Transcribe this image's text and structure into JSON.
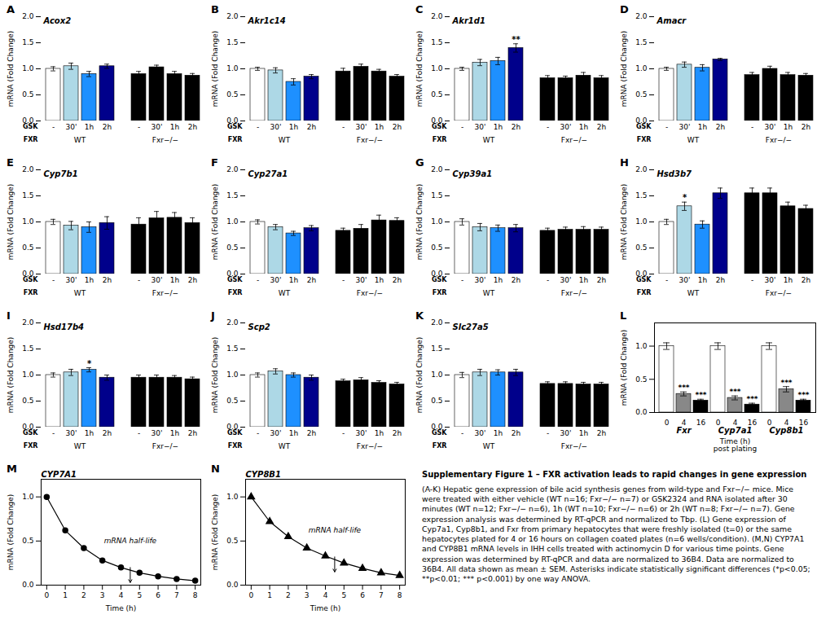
{
  "chart_data": [
    {
      "type": "bar",
      "panel_label": "A",
      "title": "Acox2",
      "categories": [
        "-",
        "30'",
        "1h",
        "2h",
        "-",
        "30'",
        "1h",
        "2h"
      ],
      "category_label": "GSK",
      "groups": [
        "WT",
        "WT",
        "WT",
        "WT",
        "Fxr−/−",
        "Fxr−/−",
        "Fxr−/−",
        "Fxr−/−"
      ],
      "group_label": "FXR",
      "values": [
        1.0,
        1.05,
        0.9,
        1.05,
        0.9,
        1.03,
        0.9,
        0.87
      ],
      "errors": [
        0.04,
        0.06,
        0.05,
        0.04,
        0.05,
        0.04,
        0.05,
        0.04
      ],
      "stars": [
        null,
        null,
        null,
        null,
        null,
        null,
        null,
        null
      ],
      "colors": [
        "white",
        "#add8e6",
        "#1e90ff",
        "#00008b",
        "black",
        "black",
        "black",
        "black"
      ],
      "ylabel": "mRNA (Fold Change)",
      "ylim": [
        0.0,
        2.0
      ],
      "yticks": [
        {
          "value": 0.0,
          "label": "0.0"
        },
        0.5,
        {
          "value": 1.0,
          "label": "1.0"
        },
        1.5,
        {
          "value": 2.0,
          "label": "2.0"
        }
      ]
    },
    {
      "type": "bar",
      "panel_label": "B",
      "title": "Akr1c14",
      "categories": [
        "-",
        "30'",
        "1h",
        "2h",
        "-",
        "30'",
        "1h",
        "2h"
      ],
      "category_label": "GSK",
      "groups": [
        "WT",
        "WT",
        "WT",
        "WT",
        "Fxr−/−",
        "Fxr−/−",
        "Fxr−/−",
        "Fxr−/−"
      ],
      "group_label": "FXR",
      "values": [
        1.0,
        0.97,
        0.75,
        0.85,
        0.95,
        1.04,
        0.95,
        0.85
      ],
      "errors": [
        0.03,
        0.05,
        0.06,
        0.04,
        0.06,
        0.05,
        0.04,
        0.04
      ],
      "stars": [
        null,
        null,
        null,
        null,
        null,
        null,
        null,
        null
      ],
      "colors": [
        "white",
        "#add8e6",
        "#1e90ff",
        "#00008b",
        "black",
        "black",
        "black",
        "black"
      ],
      "ylabel": "mRNA (Fold Change)",
      "ylim": [
        0.0,
        2.0
      ],
      "yticks": [
        {
          "value": 0.0,
          "label": "0.0"
        },
        0.5,
        {
          "value": 1.0,
          "label": "1.0"
        },
        1.5,
        {
          "value": 2.0,
          "label": "2.0"
        }
      ]
    },
    {
      "type": "bar",
      "panel_label": "C",
      "title": "Akr1d1",
      "categories": [
        "-",
        "30'",
        "1h",
        "2h",
        "-",
        "30'",
        "1h",
        "2h"
      ],
      "category_label": "GSK",
      "groups": [
        "WT",
        "WT",
        "WT",
        "WT",
        "Fxr−/−",
        "Fxr−/−",
        "Fxr−/−",
        "Fxr−/−"
      ],
      "group_label": "FXR",
      "values": [
        1.0,
        1.12,
        1.15,
        1.4,
        0.82,
        0.82,
        0.87,
        0.82
      ],
      "errors": [
        0.03,
        0.06,
        0.07,
        0.08,
        0.05,
        0.04,
        0.06,
        0.05
      ],
      "stars": [
        null,
        null,
        null,
        "**",
        null,
        null,
        null,
        null
      ],
      "colors": [
        "white",
        "#add8e6",
        "#1e90ff",
        "#00008b",
        "black",
        "black",
        "black",
        "black"
      ],
      "ylabel": "mRNA (Fold Change)",
      "ylim": [
        0.0,
        2.0
      ],
      "yticks": [
        {
          "value": 0.0,
          "label": "0.0"
        },
        0.5,
        {
          "value": 1.0,
          "label": "1.0"
        },
        1.5,
        {
          "value": 2.0,
          "label": "2.0"
        }
      ]
    },
    {
      "type": "bar",
      "panel_label": "D",
      "title": "Amacr",
      "categories": [
        "-",
        "30'",
        "1h",
        "2h",
        "-",
        "30'",
        "1h",
        "2h"
      ],
      "category_label": "GSK",
      "groups": [
        "WT",
        "WT",
        "WT",
        "WT",
        "Fxr−/−",
        "Fxr−/−",
        "Fxr−/−",
        "Fxr−/−"
      ],
      "group_label": "FXR",
      "values": [
        1.0,
        1.08,
        1.02,
        1.18,
        0.88,
        1.0,
        0.88,
        0.87
      ],
      "errors": [
        0.03,
        0.05,
        0.06,
        0.02,
        0.05,
        0.05,
        0.05,
        0.04
      ],
      "stars": [
        null,
        null,
        null,
        null,
        null,
        null,
        null,
        null
      ],
      "colors": [
        "white",
        "#add8e6",
        "#1e90ff",
        "#00008b",
        "black",
        "black",
        "black",
        "black"
      ],
      "ylabel": "mRNA (Fold Change)",
      "ylim": [
        0.0,
        2.0
      ],
      "yticks": [
        {
          "value": 0.0,
          "label": "0.0"
        },
        0.5,
        {
          "value": 1.0,
          "label": "1.0"
        },
        1.5,
        {
          "value": 2.0,
          "label": "2.0"
        }
      ]
    },
    {
      "type": "bar",
      "panel_label": "E",
      "title": "Cyp7b1",
      "categories": [
        "-",
        "30'",
        "1h",
        "2h",
        "-",
        "30'",
        "1h",
        "2h"
      ],
      "category_label": "GSK",
      "groups": [
        "WT",
        "WT",
        "WT",
        "WT",
        "Fxr−/−",
        "Fxr−/−",
        "Fxr−/−",
        "Fxr−/−"
      ],
      "group_label": "FXR",
      "values": [
        1.0,
        0.93,
        0.9,
        0.98,
        0.95,
        1.07,
        1.08,
        0.98
      ],
      "errors": [
        0.05,
        0.08,
        0.1,
        0.12,
        0.13,
        0.13,
        0.1,
        0.1
      ],
      "stars": [
        null,
        null,
        null,
        null,
        null,
        null,
        null,
        null
      ],
      "colors": [
        "white",
        "#add8e6",
        "#1e90ff",
        "#00008b",
        "black",
        "black",
        "black",
        "black"
      ],
      "ylabel": "mRNA (Fold Change)",
      "ylim": [
        0.0,
        2.0
      ],
      "yticks": [
        {
          "value": 0.0,
          "label": "0.0"
        },
        0.5,
        {
          "value": 1.0,
          "label": "1.0"
        },
        1.5,
        {
          "value": 2.0,
          "label": "2.0"
        }
      ]
    },
    {
      "type": "bar",
      "panel_label": "F",
      "title": "Cyp27a1",
      "categories": [
        "-",
        "30'",
        "1h",
        "2h",
        "-",
        "30'",
        "1h",
        "2h"
      ],
      "category_label": "GSK",
      "groups": [
        "WT",
        "WT",
        "WT",
        "WT",
        "Fxr−/−",
        "Fxr−/−",
        "Fxr−/−",
        "Fxr−/−"
      ],
      "group_label": "FXR",
      "values": [
        1.0,
        0.9,
        0.78,
        0.88,
        0.83,
        0.87,
        1.03,
        1.02
      ],
      "errors": [
        0.04,
        0.05,
        0.04,
        0.05,
        0.05,
        0.08,
        0.1,
        0.06
      ],
      "stars": [
        null,
        null,
        null,
        null,
        null,
        null,
        null,
        null
      ],
      "colors": [
        "white",
        "#add8e6",
        "#1e90ff",
        "#00008b",
        "black",
        "black",
        "black",
        "black"
      ],
      "ylabel": "mRNA (Fold Change)",
      "ylim": [
        0.0,
        2.0
      ],
      "yticks": [
        {
          "value": 0.0,
          "label": "0.0"
        },
        0.5,
        {
          "value": 1.0,
          "label": "1.0"
        },
        1.5,
        {
          "value": 2.0,
          "label": "2.0"
        }
      ]
    },
    {
      "type": "bar",
      "panel_label": "G",
      "title": "Cyp39a1",
      "categories": [
        "-",
        "30'",
        "1h",
        "2h",
        "-",
        "30'",
        "1h",
        "2h"
      ],
      "category_label": "GSK",
      "groups": [
        "WT",
        "WT",
        "WT",
        "WT",
        "Fxr−/−",
        "Fxr−/−",
        "Fxr−/−",
        "Fxr−/−"
      ],
      "group_label": "FXR",
      "values": [
        1.0,
        0.9,
        0.88,
        0.88,
        0.83,
        0.85,
        0.85,
        0.85
      ],
      "errors": [
        0.06,
        0.07,
        0.06,
        0.07,
        0.05,
        0.05,
        0.06,
        0.05
      ],
      "stars": [
        null,
        null,
        null,
        null,
        null,
        null,
        null,
        null
      ],
      "colors": [
        "white",
        "#add8e6",
        "#1e90ff",
        "#00008b",
        "black",
        "black",
        "black",
        "black"
      ],
      "ylabel": "mRNA (Fold Change)",
      "ylim": [
        0.0,
        2.0
      ],
      "yticks": [
        {
          "value": 0.0,
          "label": "0.0"
        },
        0.5,
        {
          "value": 1.0,
          "label": "1.0"
        },
        1.5,
        {
          "value": 2.0,
          "label": "2.0"
        }
      ]
    },
    {
      "type": "bar",
      "panel_label": "H",
      "title": "Hsd3b7",
      "categories": [
        "-",
        "30'",
        "1h",
        "2h",
        "-",
        "30'",
        "1h",
        "2h"
      ],
      "category_label": "GSK",
      "groups": [
        "WT",
        "WT",
        "WT",
        "WT",
        "Fxr−/−",
        "Fxr−/−",
        "Fxr−/−",
        "Fxr−/−"
      ],
      "group_label": "FXR",
      "values": [
        1.0,
        1.3,
        0.95,
        1.55,
        1.55,
        1.55,
        1.3,
        1.25
      ],
      "errors": [
        0.05,
        0.08,
        0.07,
        0.1,
        0.1,
        0.1,
        0.08,
        0.07
      ],
      "stars": [
        null,
        "*",
        null,
        null,
        null,
        null,
        null,
        null
      ],
      "colors": [
        "white",
        "#add8e6",
        "#1e90ff",
        "#00008b",
        "black",
        "black",
        "black",
        "black"
      ],
      "ylabel": "mRNA (Fold Change)",
      "ylim": [
        0.0,
        2.0
      ],
      "yticks": [
        {
          "value": 0.0,
          "label": "0.0"
        },
        0.5,
        {
          "value": 1.0,
          "label": "1.0"
        },
        1.5,
        {
          "value": 2.0,
          "label": "2.0"
        }
      ]
    },
    {
      "type": "bar",
      "panel_label": "I",
      "title": "Hsd17b4",
      "categories": [
        "-",
        "30'",
        "1h",
        "2h",
        "-",
        "30'",
        "1h",
        "2h"
      ],
      "category_label": "GSK",
      "groups": [
        "WT",
        "WT",
        "WT",
        "WT",
        "Fxr−/−",
        "Fxr−/−",
        "Fxr−/−",
        "Fxr−/−"
      ],
      "group_label": "FXR",
      "values": [
        1.0,
        1.05,
        1.1,
        0.95,
        0.95,
        0.95,
        0.95,
        0.92
      ],
      "errors": [
        0.04,
        0.06,
        0.04,
        0.05,
        0.05,
        0.05,
        0.04,
        0.04
      ],
      "stars": [
        null,
        null,
        "*",
        null,
        null,
        null,
        null,
        null
      ],
      "colors": [
        "white",
        "#add8e6",
        "#1e90ff",
        "#00008b",
        "black",
        "black",
        "black",
        "black"
      ],
      "ylabel": "mRNA (Fold Change)",
      "ylim": [
        0.0,
        2.0
      ],
      "yticks": [
        {
          "value": 0.0,
          "label": "0.0"
        },
        0.5,
        {
          "value": 1.0,
          "label": "1.0"
        },
        1.5,
        {
          "value": 2.0,
          "label": "2.0"
        }
      ]
    },
    {
      "type": "bar",
      "panel_label": "J",
      "title": "Scp2",
      "categories": [
        "-",
        "30'",
        "1h",
        "2h",
        "-",
        "30'",
        "1h",
        "2h"
      ],
      "category_label": "GSK",
      "groups": [
        "WT",
        "WT",
        "WT",
        "WT",
        "Fxr−/−",
        "Fxr−/−",
        "Fxr−/−",
        "Fxr−/−"
      ],
      "group_label": "FXR",
      "values": [
        1.0,
        1.07,
        1.0,
        0.95,
        0.88,
        0.9,
        0.85,
        0.82
      ],
      "errors": [
        0.04,
        0.05,
        0.04,
        0.05,
        0.04,
        0.05,
        0.04,
        0.04
      ],
      "stars": [
        null,
        null,
        null,
        null,
        null,
        null,
        null,
        null
      ],
      "colors": [
        "white",
        "#add8e6",
        "#1e90ff",
        "#00008b",
        "black",
        "black",
        "black",
        "black"
      ],
      "ylabel": "mRNA (Fold Change)",
      "ylim": [
        0.0,
        2.0
      ],
      "yticks": [
        {
          "value": 0.0,
          "label": "0.0"
        },
        0.5,
        {
          "value": 1.0,
          "label": "1.0"
        },
        1.5,
        {
          "value": 2.0,
          "label": "2.0"
        }
      ]
    },
    {
      "type": "bar",
      "panel_label": "K",
      "title": "Slc27a5",
      "categories": [
        "-",
        "30'",
        "1h",
        "2h",
        "-",
        "30'",
        "1h",
        "2h"
      ],
      "category_label": "GSK",
      "groups": [
        "WT",
        "WT",
        "WT",
        "WT",
        "Fxr−/−",
        "Fxr−/−",
        "Fxr−/−",
        "Fxr−/−"
      ],
      "group_label": "FXR",
      "values": [
        1.0,
        1.05,
        1.05,
        1.05,
        0.83,
        0.83,
        0.82,
        0.82
      ],
      "errors": [
        0.05,
        0.06,
        0.05,
        0.06,
        0.04,
        0.04,
        0.04,
        0.04
      ],
      "stars": [
        null,
        null,
        null,
        null,
        null,
        null,
        null,
        null
      ],
      "colors": [
        "white",
        "#add8e6",
        "#1e90ff",
        "#00008b",
        "black",
        "black",
        "black",
        "black"
      ],
      "ylabel": "mRNA (Fold Change)",
      "ylim": [
        0.0,
        2.0
      ],
      "yticks": [
        {
          "value": 0.0,
          "label": "0.0"
        },
        0.5,
        {
          "value": 1.0,
          "label": "1.0"
        },
        1.5,
        {
          "value": 2.0,
          "label": "2.0"
        }
      ]
    },
    {
      "type": "bar",
      "panel_label": "L",
      "categories": [
        "Fxr",
        "Cyp7a1",
        "Cyp8b1"
      ],
      "xlabel": "Time (h)\npost plating",
      "ylabel": "mRNA (Fold Change)",
      "ylim": [
        0.0,
        1.35
      ],
      "yticks": [
        {
          "value": 0.0,
          "label": "0.0"
        },
        0.5,
        {
          "value": 1.0,
          "label": "1.0"
        }
      ],
      "series": [
        {
          "name": "0",
          "color": "white",
          "values": [
            1.0,
            1.0,
            1.0
          ],
          "errors": [
            0.05,
            0.05,
            0.05
          ],
          "stars": [
            null,
            null,
            null
          ]
        },
        {
          "name": "4",
          "color": "#888888",
          "values": [
            0.28,
            0.22,
            0.35
          ],
          "errors": [
            0.03,
            0.03,
            0.04
          ],
          "stars": [
            "***",
            "***",
            "***"
          ]
        },
        {
          "name": "16",
          "color": "black",
          "values": [
            0.18,
            0.12,
            0.18
          ],
          "errors": [
            0.02,
            0.02,
            0.02
          ],
          "stars": [
            "***",
            "***",
            "***"
          ]
        }
      ]
    },
    {
      "type": "line",
      "panel_label": "M",
      "title": "CYP7A1",
      "x": [
        0,
        1,
        2,
        3,
        4,
        5,
        6,
        7,
        8
      ],
      "values": [
        1.0,
        0.62,
        0.42,
        0.28,
        0.2,
        0.14,
        0.1,
        0.07,
        0.05
      ],
      "color": "black",
      "marker": "circle",
      "xlabel": "Time (h)",
      "ylabel": "mRNA (Fold Change)",
      "xlim": [
        -0.3,
        8.3
      ],
      "xticks": [
        0,
        1,
        2,
        3,
        4,
        5,
        6,
        7,
        8
      ],
      "ylim": [
        0.0,
        1.2
      ],
      "yticks": [
        {
          "value": 0.0,
          "label": "0.0"
        },
        0.5,
        {
          "value": 1.0,
          "label": "1.0"
        }
      ],
      "annotations": [
        {
          "text": "mRNA half-life",
          "x": 4.5,
          "y": 0.2,
          "y_end": 0.03
        }
      ]
    },
    {
      "type": "line",
      "panel_label": "N",
      "title": "CYP8B1",
      "x": [
        0,
        1,
        2,
        3,
        4,
        5,
        6,
        7,
        8
      ],
      "values": [
        1.0,
        0.72,
        0.55,
        0.42,
        0.33,
        0.25,
        0.19,
        0.14,
        0.11
      ],
      "color": "black",
      "marker": "triangle",
      "xlabel": "Time (h)",
      "ylabel": "mRNA (Fold Change)",
      "xlim": [
        -0.3,
        8.3
      ],
      "xticks": [
        0,
        1,
        2,
        3,
        4,
        5,
        6,
        7,
        8
      ],
      "ylim": [
        0.0,
        1.2
      ],
      "yticks": [
        {
          "value": 0.0,
          "label": "0.0"
        },
        0.5,
        {
          "value": 1.0,
          "label": "1.0"
        }
      ],
      "annotations": [
        {
          "text": "mRNA half-life",
          "x": 4.5,
          "y": 0.32,
          "y_end": 0.15
        }
      ]
    }
  ],
  "caption": {
    "title": "Supplementary Figure 1 – FXR activation leads to rapid changes in gene expression",
    "text": "(A-K) Hepatic gene expression of bile acid synthesis genes from wild-type and Fxr−/− mice. Mice were treated with either vehicle (WT n=16; Fxr−/− n=7) or GSK2324 and RNA isolated after 30 minutes (WT n=12; Fxr−/− n=6), 1h (WT n=10; Fxr−/− n=6) or 2h (WT n=8; Fxr−/− n=7). Gene expression analysis was determined by RT-qPCR and normalized to Tbp. (L) Gene expression of Cyp7a1, Cyp8b1, and Fxr from primary hepatocytes that were freshly isolated (t=0) or the same hepatocytes plated for 4 or 16 hours on collagen coated plates (n=6 wells/condition). (M,N) CYP7A1 and CYP8B1 mRNA levels in IHH cells treated with actinomycin D for various time points. Gene expression was determined by RT-qPCR and data are normalized to 36B4. Data are normalized to 36B4. All data shown as mean ± SEM. Asterisks indicate statistically significant differences (*p<0.05; **p<0.01; *** p<0.001) by one way ANOVA."
  }
}
